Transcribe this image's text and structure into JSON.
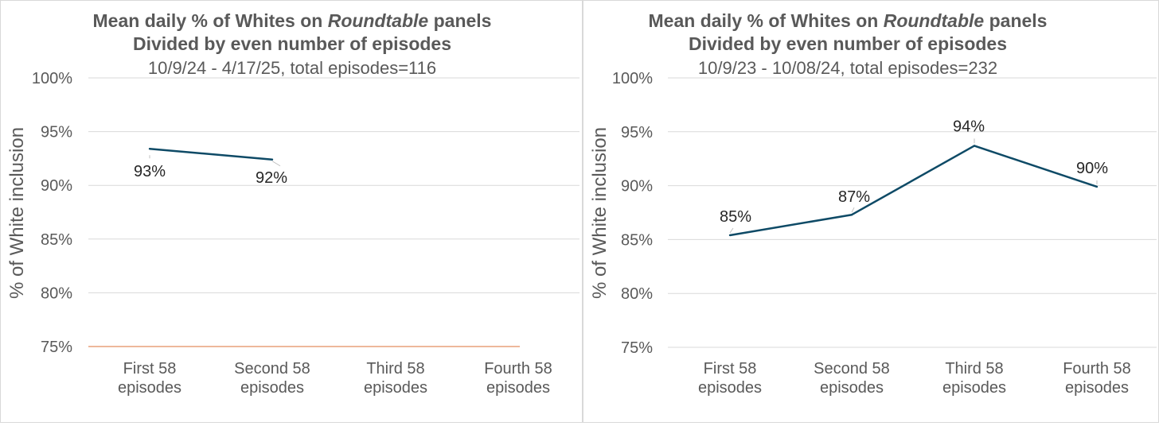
{
  "chart_data": [
    {
      "type": "line",
      "title": "Mean daily % of Whites on",
      "title_italic": "Roundtable",
      "title_tail": " panels",
      "subtitle": "Divided by even number of episodes",
      "date_line": "10/9/24 - 4/17/25, total episodes=116",
      "ylabel": "% of White inclusion",
      "ylim": [
        75,
        100
      ],
      "yticks": [
        100,
        95,
        90,
        85,
        80,
        75
      ],
      "ytick_labels": [
        "100%",
        "95%",
        "90%",
        "85%",
        "80%",
        "75%"
      ],
      "categories": [
        [
          "First 58",
          "episodes"
        ],
        [
          "Second 58",
          "episodes"
        ],
        [
          "Third 58",
          "episodes"
        ],
        [
          "Fourth 58",
          "episodes"
        ]
      ],
      "series": [
        {
          "values": [
            93.4,
            92.4,
            null,
            null
          ],
          "labels": [
            "93%",
            "92%",
            "",
            ""
          ],
          "color": "#0e4a66"
        }
      ],
      "baseline_color": "#e8a07a",
      "grid": true
    },
    {
      "type": "line",
      "title": "Mean daily % of Whites on",
      "title_italic": "Roundtable",
      "title_tail": " panels",
      "subtitle": "Divided by even number of episodes",
      "date_line": "10/9/23 - 10/08/24, total episodes=232",
      "ylabel": "% of White inclusion",
      "ylim": [
        75,
        100
      ],
      "yticks": [
        100,
        95,
        90,
        85,
        80,
        75
      ],
      "ytick_labels": [
        "100%",
        "95%",
        "90%",
        "85%",
        "80%",
        "75%"
      ],
      "categories": [
        [
          "First 58",
          "episodes"
        ],
        [
          "Second 58",
          "episodes"
        ],
        [
          "Third 58",
          "episodes"
        ],
        [
          "Fourth 58",
          "episodes"
        ]
      ],
      "series": [
        {
          "values": [
            85.4,
            87.3,
            93.7,
            89.9
          ],
          "labels": [
            "85%",
            "87%",
            "94%",
            "90%"
          ],
          "color": "#0e4a66"
        }
      ],
      "grid": true
    }
  ]
}
